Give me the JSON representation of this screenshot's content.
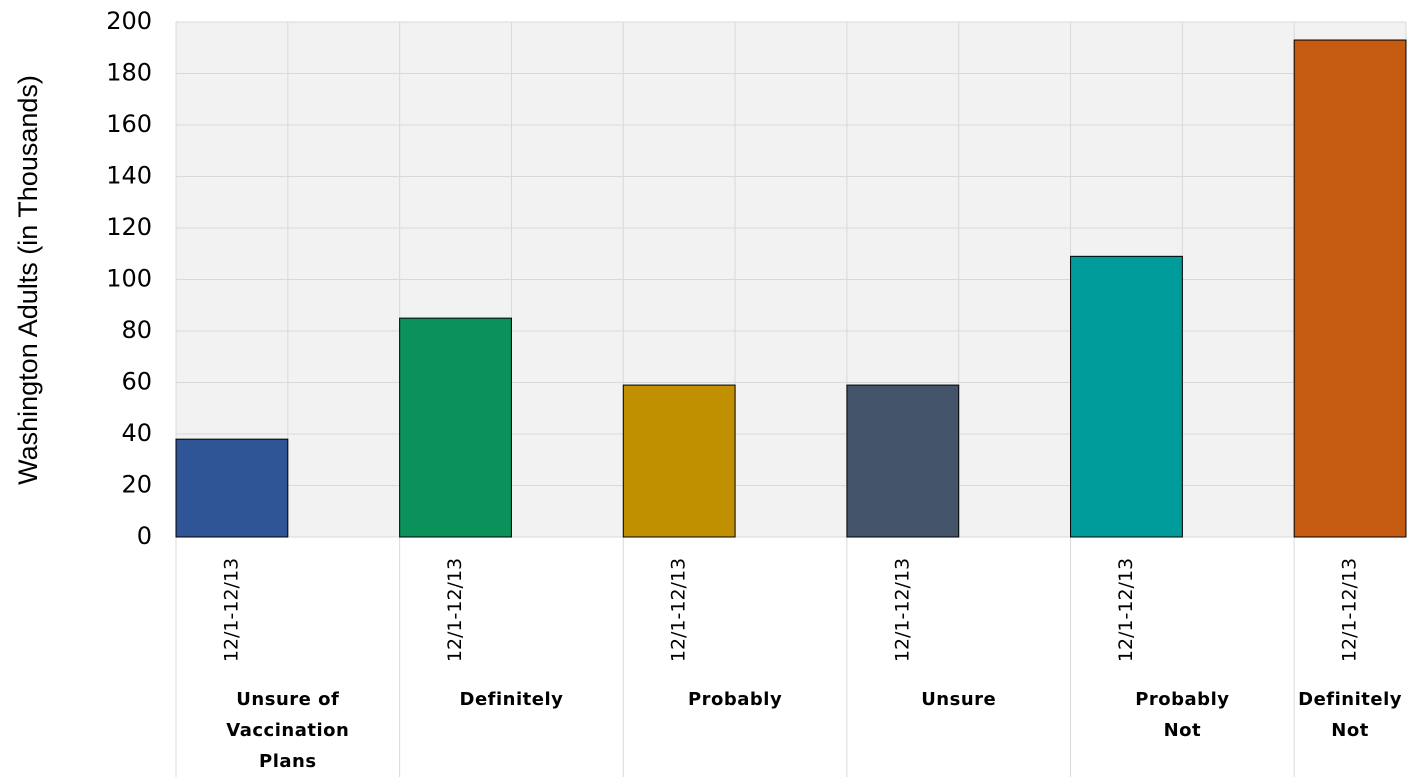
{
  "chart_data": {
    "type": "bar",
    "y_label": "Washington Adults (in Thousands)",
    "categories": [
      "12/1-12/13",
      "12/1-12/13",
      "12/1-12/13",
      "12/1-12/13",
      "12/1-12/13",
      "12/1-12/13"
    ],
    "groups": [
      "Unsure of Vaccination Plans",
      "Definitely",
      "Probably",
      "Unsure",
      "Probably Not",
      "Definitely Not"
    ],
    "values": [
      38,
      85,
      59,
      59,
      109,
      193
    ],
    "colors": [
      "#2f5597",
      "#0a925a",
      "#c09000",
      "#44546a",
      "#009b9b",
      "#c55a11"
    ],
    "ylim": [
      0,
      200
    ],
    "yticks": [
      0,
      20,
      40,
      60,
      80,
      100,
      120,
      140,
      160,
      180,
      200
    ],
    "grid": true
  }
}
